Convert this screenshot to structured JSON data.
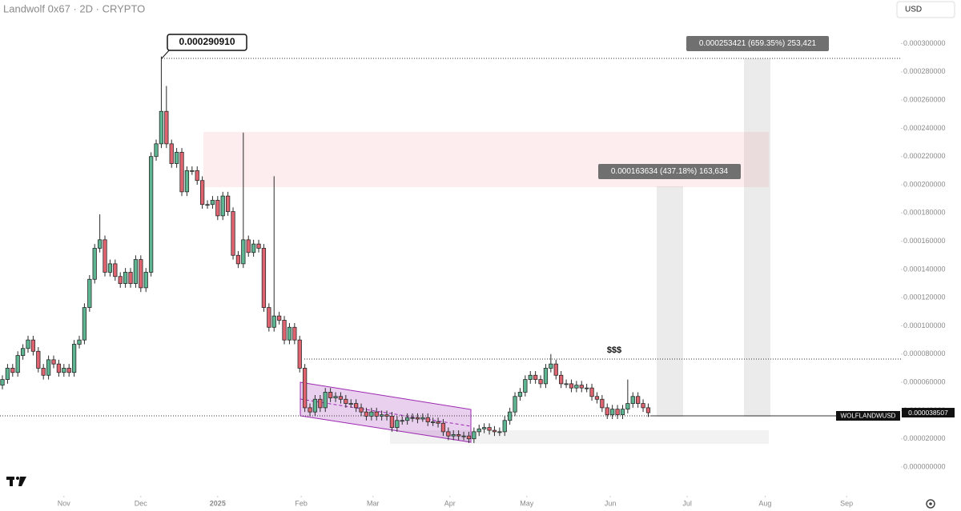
{
  "chart_data": {
    "type": "candlestick",
    "title": "Landwolf 0x67 · 2D · CRYPTO",
    "currency": "USD",
    "up_color": "#5db592",
    "down_color": "#e06470",
    "wick_color": "#2a2a2a",
    "xlim": [
      -0.47,
      175.3
    ],
    "xticks": [
      {
        "value": 12,
        "label": "Nov"
      },
      {
        "value": 27,
        "label": "Dec"
      },
      {
        "value": 42,
        "label": "2025"
      },
      {
        "value": 58.3,
        "label": "Feb"
      },
      {
        "value": 72.3,
        "label": "Mar"
      },
      {
        "value": 87.3,
        "label": "Apr"
      },
      {
        "value": 102.3,
        "label": "May"
      },
      {
        "value": 118.6,
        "label": "Jun"
      },
      {
        "value": 133.6,
        "label": "Jul"
      },
      {
        "value": 148.8,
        "label": "Aug"
      },
      {
        "value": 164.7,
        "label": "Sep"
      }
    ],
    "ylim": [
      -2.04e-05,
      0.0003309
    ],
    "yticks": [
      {
        "value": 0,
        "label": "0.000000000"
      },
      {
        "value": 2e-05,
        "label": "0.000020000"
      },
      {
        "value": 4e-05,
        "label": "0.000040000"
      },
      {
        "value": 6e-05,
        "label": "0.000060000"
      },
      {
        "value": 8e-05,
        "label": "0.000080000"
      },
      {
        "value": 0.0001,
        "label": "0.000100000"
      },
      {
        "value": 0.00012,
        "label": "0.000120000"
      },
      {
        "value": 0.00014,
        "label": "0.000140000"
      },
      {
        "value": 0.00016,
        "label": "0.000160000"
      },
      {
        "value": 0.00018,
        "label": "0.000180000"
      },
      {
        "value": 0.0002,
        "label": "0.000200000"
      },
      {
        "value": 0.00022,
        "label": "0.000220000"
      },
      {
        "value": 0.00024,
        "label": "0.000240000"
      },
      {
        "value": 0.00026,
        "label": "0.000260000"
      },
      {
        "value": 0.00028,
        "label": "0.000280000"
      },
      {
        "value": 0.0003,
        "label": "0.000300000"
      }
    ],
    "open": [
      5.8e-05,
      6.2e-05,
      7e-05,
      6.7e-05,
      7.9e-05,
      8.4e-05,
      9e-05,
      8.2e-05,
      7e-05,
      6.5e-05,
      7.6e-05,
      7.3e-05,
      6.7e-05,
      7e-05,
      6.7e-05,
      8.7e-05,
      9e-05,
      0.000113,
      0.000133,
      0.000155,
      0.000161,
      0.000138,
      0.000144,
      0.000135,
      0.00013,
      0.000138,
      0.00013,
      0.000147,
      0.000127,
      0.000138,
      0.00022,
      0.000229,
      0.000252,
      0.000229,
      0.000215,
      0.000223,
      0.000195,
      0.00021,
      0.00021,
      0.000203,
      0.000186,
      0.000186,
      0.000189,
      0.000178,
      0.000192,
      0.000181,
      0.00015,
      0.000144,
      0.000161,
      0.000152,
      0.000158,
      0.000155,
      0.000113,
      9.9e-05,
      0.000107,
      0.000104,
      9e-05,
      9.9e-05,
      9e-05,
      7e-05,
      4.2e-05,
      3.9e-05,
      4.8e-05,
      4.2e-05,
      5.3e-05,
      4.9e-05,
      5e-05,
      4.8e-05,
      4.5e-05,
      4.5e-05,
      4.2e-05,
      3.9e-05,
      3.6e-05,
      3.9e-05,
      3.6e-05,
      3.7e-05,
      3.6e-05,
      2.8e-05,
      3.3e-05,
      3.3e-05,
      3.5e-05,
      3.5e-05,
      3.4e-05,
      3.5e-05,
      3.2e-05,
      3.2e-05,
      3.1e-05,
      2.5e-05,
      2.2e-05,
      2.3e-05,
      2.2e-05,
      2.2e-05,
      2e-05,
      2.5e-05,
      2.7e-05,
      2.8e-05,
      2.6e-05,
      2.5e-05,
      2.5e-05,
      3.3e-05,
      3.9e-05,
      5e-05,
      5.3e-05,
      6.2e-05,
      6.5e-05,
      6.2e-05,
      5.9e-05,
      7e-05,
      7.3e-05,
      6.5e-05,
      5.9e-05,
      5.9e-05,
      5.6e-05,
      5.8e-05,
      5.6e-05,
      5.6e-05,
      5e-05,
      4.8e-05,
      4.2e-05,
      3.7e-05,
      4.1e-05,
      3.7e-05,
      4.1e-05,
      4.5e-05,
      5e-05,
      4.5e-05,
      4.2e-05
    ],
    "high": [
      6.5e-05,
      7.3e-05,
      7.3e-05,
      8.2e-05,
      8.7e-05,
      9.3e-05,
      9.3e-05,
      8.5e-05,
      7.3e-05,
      7.9e-05,
      7.9e-05,
      7.6e-05,
      7.3e-05,
      7.3e-05,
      9e-05,
      9.3e-05,
      0.000116,
      0.000136,
      0.000158,
      0.000179,
      0.000164,
      0.000147,
      0.000147,
      0.000138,
      0.000141,
      0.000141,
      0.00015,
      0.00015,
      0.000141,
      0.000223,
      0.000232,
      0.00029091,
      0.00027,
      0.000232,
      0.000226,
      0.000226,
      0.000213,
      0.000213,
      0.000213,
      0.000206,
      0.000189,
      0.000192,
      0.000192,
      0.000195,
      0.000195,
      0.000184,
      0.000153,
      0.000237,
      0.000164,
      0.000161,
      0.000161,
      0.000158,
      0.000116,
      0.000206,
      0.00011,
      0.000107,
      0.000102,
      0.000102,
      9.3e-05,
      7.3e-05,
      4.5e-05,
      5.1e-05,
      5.1e-05,
      5.6e-05,
      5.6e-05,
      5.3e-05,
      5.3e-05,
      5.1e-05,
      4.8e-05,
      4.8e-05,
      4.5e-05,
      4.2e-05,
      4.2e-05,
      4.2e-05,
      4e-05,
      4e-05,
      3.9e-05,
      3.6e-05,
      3.6e-05,
      3.8e-05,
      3.8e-05,
      3.8e-05,
      3.8e-05,
      3.8e-05,
      3.5e-05,
      3.5e-05,
      3.4e-05,
      2.8e-05,
      2.6e-05,
      2.6e-05,
      2.5e-05,
      2.5e-05,
      2.8e-05,
      3e-05,
      3.1e-05,
      3.1e-05,
      2.9e-05,
      2.8e-05,
      3.6e-05,
      4.2e-05,
      5.3e-05,
      5.6e-05,
      6.5e-05,
      6.8e-05,
      6.8e-05,
      6.5e-05,
      7.3e-05,
      8e-05,
      7.6e-05,
      6.8e-05,
      6.2e-05,
      6.2e-05,
      6.1e-05,
      6.1e-05,
      5.9e-05,
      5.9e-05,
      5.3e-05,
      5.1e-05,
      4.5e-05,
      4.4e-05,
      4.4e-05,
      4.4e-05,
      6.2e-05,
      5.3e-05,
      5.3e-05,
      4.8e-05,
      4.5e-05
    ],
    "low": [
      5.5e-05,
      5.9e-05,
      6.4e-05,
      6.4e-05,
      7.6e-05,
      8.1e-05,
      7.9e-05,
      6.7e-05,
      6.2e-05,
      6.2e-05,
      7e-05,
      6.4e-05,
      6.4e-05,
      6.4e-05,
      6.4e-05,
      8.4e-05,
      8.7e-05,
      0.00011,
      0.00013,
      0.000152,
      0.000135,
      0.000135,
      0.000132,
      0.000127,
      0.000127,
      0.000127,
      0.000127,
      0.000124,
      0.000124,
      0.000135,
      0.000217,
      0.000226,
      0.000226,
      0.000212,
      0.000212,
      0.000192,
      0.000192,
      0.000207,
      0.0002,
      0.000183,
      0.000183,
      0.000183,
      0.000175,
      0.000175,
      0.000178,
      0.000147,
      0.000141,
      0.000141,
      0.000149,
      0.000149,
      0.000152,
      0.00011,
      9.6e-05,
      9.6e-05,
      0.000101,
      8.7e-05,
      8.7e-05,
      8.7e-05,
      6.7e-05,
      3.9e-05,
      3.6e-05,
      3.6e-05,
      3.9e-05,
      3.9e-05,
      4.6e-05,
      4.6e-05,
      4.5e-05,
      4.2e-05,
      4.2e-05,
      3.9e-05,
      3.6e-05,
      3.3e-05,
      3.3e-05,
      3.3e-05,
      3.3e-05,
      3.3e-05,
      2.5e-05,
      2.5e-05,
      3e-05,
      3e-05,
      3.2e-05,
      3.1e-05,
      3.2e-05,
      2.9e-05,
      2.9e-05,
      2.8e-05,
      2.2e-05,
      1.9e-05,
      1.9e-05,
      1.9e-05,
      1.9e-05,
      1.7e-05,
      1.7e-05,
      2.2e-05,
      2.4e-05,
      2.3e-05,
      2.2e-05,
      2.2e-05,
      2.2e-05,
      3e-05,
      3.6e-05,
      4.7e-05,
      5e-05,
      5.9e-05,
      5.9e-05,
      5.6e-05,
      5.6e-05,
      6.7e-05,
      6.2e-05,
      5.6e-05,
      5.6e-05,
      5.3e-05,
      5.3e-05,
      5.3e-05,
      5.3e-05,
      4.7e-05,
      4.5e-05,
      3.9e-05,
      3.4e-05,
      3.4e-05,
      3.4e-05,
      3.4e-05,
      3.8e-05,
      4.2e-05,
      4.2e-05,
      3.9e-05,
      3.55e-05
    ],
    "close": [
      6.2e-05,
      7e-05,
      6.7e-05,
      7.9e-05,
      8.4e-05,
      9e-05,
      8.2e-05,
      7e-05,
      6.5e-05,
      7.6e-05,
      7.3e-05,
      6.7e-05,
      7e-05,
      6.7e-05,
      8.7e-05,
      9e-05,
      0.000113,
      0.000133,
      0.000155,
      0.000161,
      0.000138,
      0.000144,
      0.000135,
      0.00013,
      0.000138,
      0.00013,
      0.000147,
      0.000127,
      0.000138,
      0.00022,
      0.000229,
      0.000252,
      0.000229,
      0.000215,
      0.000223,
      0.000195,
      0.00021,
      0.00021,
      0.000203,
      0.000186,
      0.000186,
      0.000189,
      0.000178,
      0.000192,
      0.000181,
      0.00015,
      0.000144,
      0.000161,
      0.000152,
      0.000158,
      0.000155,
      0.000113,
      9.9e-05,
      0.000107,
      0.000104,
      9e-05,
      9.9e-05,
      9e-05,
      7e-05,
      4.2e-05,
      3.9e-05,
      4.8e-05,
      4.2e-05,
      5.3e-05,
      4.9e-05,
      5e-05,
      4.8e-05,
      4.5e-05,
      4.5e-05,
      4.2e-05,
      3.9e-05,
      3.6e-05,
      3.9e-05,
      3.6e-05,
      3.7e-05,
      3.6e-05,
      2.8e-05,
      3.3e-05,
      3.3e-05,
      3.5e-05,
      3.5e-05,
      3.4e-05,
      3.5e-05,
      3.2e-05,
      3.2e-05,
      3.1e-05,
      2.5e-05,
      2.2e-05,
      2.3e-05,
      2.2e-05,
      2.2e-05,
      2e-05,
      2.5e-05,
      2.7e-05,
      2.8e-05,
      2.6e-05,
      2.5e-05,
      2.5e-05,
      3.3e-05,
      3.9e-05,
      5e-05,
      5.3e-05,
      6.2e-05,
      6.5e-05,
      6.2e-05,
      5.9e-05,
      7e-05,
      7.3e-05,
      6.5e-05,
      5.9e-05,
      5.9e-05,
      5.6e-05,
      5.8e-05,
      5.6e-05,
      5.6e-05,
      5e-05,
      4.8e-05,
      4.2e-05,
      3.7e-05,
      4.1e-05,
      3.7e-05,
      4.1e-05,
      4.5e-05,
      5e-05,
      4.5e-05,
      4.2e-05,
      3.8507e-05
    ],
    "peak_label": {
      "value": 0.00029091,
      "label": "0.000290910"
    },
    "measure_labels": [
      "0.000253421 (659.35%) 253,421",
      "0.000163634 (437.18%) 163,634"
    ],
    "liquidity_label": "$$$",
    "price_tag": {
      "symbol": "WOLFLANDWUSD",
      "value": 3.8507e-05,
      "label": "0.000038507"
    }
  }
}
